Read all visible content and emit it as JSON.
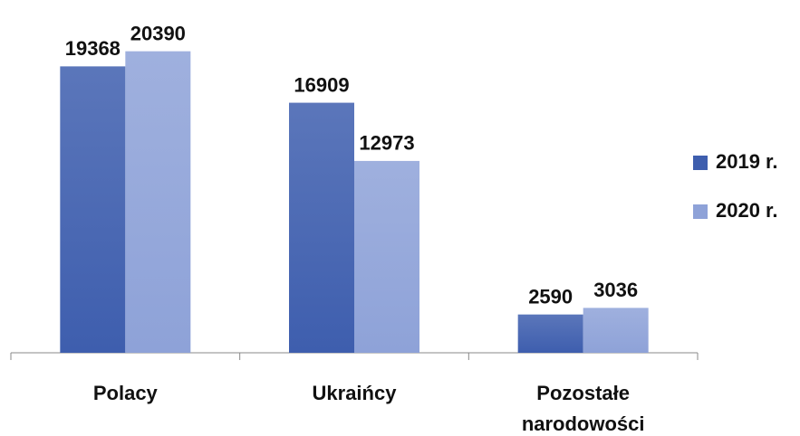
{
  "chart_data": {
    "type": "bar",
    "categories": [
      "Polacy",
      "Ukraińcy",
      "Pozostałe narodowości"
    ],
    "series": [
      {
        "name": "2019 r.",
        "color": "#3e5eae",
        "values": [
          19368,
          16909,
          2590
        ]
      },
      {
        "name": "2020 r.",
        "color": "#8ea2d8",
        "values": [
          20390,
          12973,
          3036
        ]
      }
    ],
    "ylim": [
      0,
      23000
    ],
    "legend": "right"
  }
}
